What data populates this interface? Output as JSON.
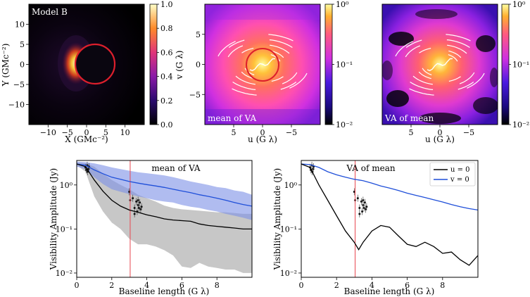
{
  "colors": {
    "ring": "#dd1f2c",
    "vline": "#e8464f",
    "u_line": "#000000",
    "v_line": "#1f4fd9",
    "v_band": "#7b90e6",
    "u_band": "#bdbdbd",
    "white": "#ffffff"
  },
  "chart_data": [
    {
      "type": "heatmap",
      "title": "Model B",
      "xlabel": "X (GMc⁻²)",
      "ylabel": "Y (GMc⁻²)",
      "xlim": [
        -15,
        15
      ],
      "ylim": [
        -15,
        15
      ],
      "xticks": [
        "−10",
        "−5",
        "0",
        "5",
        "10"
      ],
      "yticks": [
        "10",
        "5",
        "0",
        "−5",
        "−10"
      ],
      "ring": {
        "center": [
          2,
          0
        ],
        "radius": 5.2
      },
      "colorbar": {
        "scale": "linear",
        "min": 0.0,
        "max": 1.0,
        "ticks": [
          "1.0",
          "0.8",
          "0.6",
          "0.4",
          "0.2",
          "0.0"
        ]
      }
    },
    {
      "type": "heatmap",
      "title": "mean of VA",
      "xlabel": "u (G λ)",
      "ylabel": "v (G λ)",
      "xlim": [
        10,
        -10
      ],
      "ylim": [
        -10,
        10
      ],
      "xticks": [
        "5",
        "0",
        "−5"
      ],
      "yticks": [
        "5",
        "0",
        "−5"
      ],
      "colorbar": {
        "scale": "log",
        "min": 0.01,
        "max": 1.0,
        "ticks": [
          "10⁰",
          "10⁻¹",
          "10⁻²"
        ]
      }
    },
    {
      "type": "heatmap",
      "title": "VA of mean",
      "xlabel": "u (G λ)",
      "xlim": [
        10,
        -10
      ],
      "ylim": [
        -10,
        10
      ],
      "xticks": [
        "5",
        "0",
        "−5"
      ],
      "colorbar": {
        "scale": "log",
        "min": 0.01,
        "max": 1.0,
        "ticks": [
          "10⁰",
          "10⁻¹",
          "10⁻²"
        ]
      }
    },
    {
      "type": "line",
      "title": "mean of VA",
      "xlabel": "Baseline length (G λ)",
      "ylabel": "Visibility Amplitude (Jy)",
      "xlim": [
        0,
        10
      ],
      "ylim": [
        0.008,
        3.6
      ],
      "yscale": "log",
      "xticks": [
        "0",
        "2",
        "4",
        "6",
        "8"
      ],
      "yticks": [
        "10⁰",
        "10⁻¹",
        "10⁻²"
      ],
      "vline_x": 3.05,
      "x": [
        0,
        0.5,
        1,
        1.5,
        2,
        2.5,
        3,
        3.5,
        4,
        4.5,
        5,
        5.5,
        6,
        6.5,
        7,
        7.5,
        8,
        8.5,
        9,
        9.5,
        10
      ],
      "series": [
        {
          "name": "u = 0",
          "values": [
            3.0,
            2.6,
            1.3,
            0.72,
            0.45,
            0.33,
            0.27,
            0.24,
            0.21,
            0.19,
            0.17,
            0.16,
            0.155,
            0.15,
            0.13,
            0.12,
            0.115,
            0.11,
            0.105,
            0.1,
            0.1
          ],
          "band_upper": [
            3.2,
            3.1,
            2.6,
            1.8,
            1.3,
            1.0,
            0.8,
            0.6,
            0.5,
            0.42,
            0.34,
            0.3,
            0.28,
            0.27,
            0.26,
            0.25,
            0.24,
            0.24,
            0.23,
            0.22,
            0.22
          ],
          "band_lower": [
            2.8,
            2.0,
            0.55,
            0.25,
            0.14,
            0.1,
            0.06,
            0.045,
            0.045,
            0.04,
            0.033,
            0.025,
            0.014,
            0.013,
            0.017,
            0.014,
            0.013,
            0.012,
            0.012,
            0.01,
            0.01
          ]
        },
        {
          "name": "v = 0",
          "values": [
            3.0,
            2.8,
            2.2,
            1.8,
            1.5,
            1.35,
            1.2,
            1.1,
            1.02,
            0.95,
            0.88,
            0.8,
            0.73,
            0.67,
            0.6,
            0.55,
            0.5,
            0.45,
            0.4,
            0.36,
            0.33
          ],
          "band_upper": [
            3.4,
            3.3,
            3.1,
            2.8,
            2.5,
            2.3,
            2.1,
            1.95,
            1.85,
            1.75,
            1.65,
            1.5,
            1.35,
            1.2,
            1.1,
            1.0,
            0.9,
            0.85,
            0.75,
            0.7,
            0.6
          ],
          "band_lower": [
            2.6,
            2.3,
            1.5,
            1.05,
            0.8,
            0.7,
            0.62,
            0.55,
            0.5,
            0.45,
            0.42,
            0.4,
            0.35,
            0.32,
            0.3,
            0.27,
            0.25,
            0.22,
            0.2,
            0.18,
            0.16
          ]
        }
      ],
      "observations": {
        "x": [
          0.5,
          0.55,
          0.6,
          0.62,
          0.68,
          0.7,
          3.0,
          3.05,
          3.3,
          3.4,
          3.45,
          3.5,
          3.55,
          3.6,
          3.65,
          3.7,
          3.3,
          3.5,
          3.2
        ],
        "y": [
          2.5,
          2.2,
          2.8,
          2.0,
          2.3,
          2.6,
          0.7,
          0.45,
          0.3,
          0.42,
          0.25,
          0.35,
          0.3,
          0.4,
          0.28,
          0.32,
          0.22,
          0.45,
          0.5
        ]
      }
    },
    {
      "type": "line",
      "title": "VA of mean",
      "xlabel": "Baseline length (G λ)",
      "ylabel": "Visibility Amplitude (Jy)",
      "xlim": [
        0,
        10
      ],
      "ylim": [
        0.008,
        3.6
      ],
      "yscale": "log",
      "xticks": [
        "0",
        "2",
        "4",
        "6",
        "8"
      ],
      "yticks": [
        "10⁰",
        "10⁻¹",
        "10⁻²"
      ],
      "vline_x": 3.05,
      "legend": [
        "u = 0",
        "v = 0"
      ],
      "legend_position": "top-right",
      "x": [
        0,
        0.5,
        1,
        1.5,
        2,
        2.5,
        3,
        3.25,
        3.5,
        4,
        4.5,
        5,
        5.5,
        6,
        6.5,
        7,
        7.5,
        8,
        8.5,
        9,
        9.5,
        10
      ],
      "series": [
        {
          "name": "u = 0",
          "values": [
            3.0,
            2.5,
            1.0,
            0.45,
            0.2,
            0.09,
            0.05,
            0.034,
            0.05,
            0.09,
            0.12,
            0.11,
            0.07,
            0.045,
            0.04,
            0.05,
            0.04,
            0.028,
            0.03,
            0.02,
            0.015,
            0.025
          ]
        },
        {
          "name": "v = 0",
          "values": [
            3.0,
            2.9,
            2.5,
            2.0,
            1.7,
            1.5,
            1.35,
            1.3,
            1.25,
            1.1,
            0.95,
            0.85,
            0.75,
            0.65,
            0.58,
            0.52,
            0.46,
            0.41,
            0.36,
            0.32,
            0.29,
            0.27
          ]
        }
      ],
      "observations": {
        "x": [
          0.5,
          0.55,
          0.6,
          0.62,
          0.68,
          0.7,
          3.0,
          3.05,
          3.3,
          3.4,
          3.45,
          3.5,
          3.55,
          3.6,
          3.65,
          3.7,
          3.3,
          3.5,
          3.2
        ],
        "y": [
          2.5,
          2.2,
          2.8,
          2.0,
          2.3,
          2.6,
          0.7,
          0.45,
          0.3,
          0.42,
          0.25,
          0.35,
          0.3,
          0.4,
          0.28,
          0.32,
          0.22,
          0.45,
          0.5
        ]
      }
    }
  ]
}
